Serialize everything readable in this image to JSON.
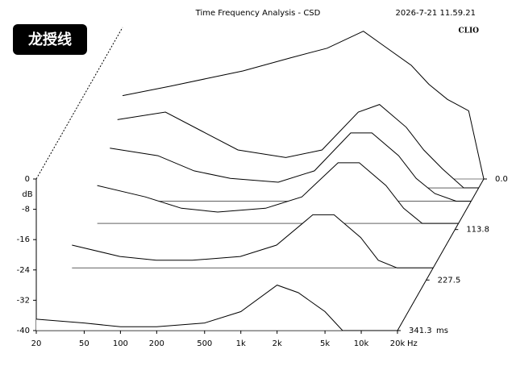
{
  "chart_data": {
    "type": "waterfall",
    "title": "Time Frequency Analysis - CSD",
    "timestamp": "2026-7-21 11.59.21",
    "brand": "CLIO",
    "badge": "龙授线",
    "ylabel": "dB",
    "xunit": "Hz",
    "tunit": "ms",
    "log_x": true,
    "xlim": [
      20,
      20000
    ],
    "xticks": [
      20,
      50,
      100,
      200,
      500,
      {
        "value": 1000,
        "label": "1k"
      },
      {
        "value": 2000,
        "label": "2k"
      },
      {
        "value": 5000,
        "label": "5k"
      },
      {
        "value": 10000,
        "label": "10k"
      },
      {
        "value": 20000,
        "label": "20k"
      }
    ],
    "ylim": [
      -40,
      0
    ],
    "yticks": [
      0,
      -8,
      -16,
      -24,
      -32,
      -40
    ],
    "tlim": [
      0,
      341.3
    ],
    "tticks": [
      {
        "value": 0,
        "label": "0.0"
      },
      113.8,
      227.5,
      341.3
    ],
    "color": "#000000",
    "x": [
      20,
      50,
      100,
      200,
      500,
      1000,
      2000,
      3000,
      5000,
      7000,
      10000,
      15000,
      20000
    ],
    "slices": [
      {
        "time": 0,
        "values": [
          -18,
          -15.5,
          -13.5,
          -11.5,
          -8,
          -5.5,
          -1,
          -5,
          -10,
          -15,
          -19,
          -22,
          -40
        ]
      },
      {
        "time": 20,
        "values": [
          -22,
          -20,
          -25,
          -30,
          -32,
          -30,
          -20,
          -18,
          -24,
          -30,
          -35,
          -40,
          -40
        ]
      },
      {
        "time": 50,
        "values": [
          -26,
          -28,
          -32,
          -34,
          -35,
          -32,
          -22,
          -22,
          -28,
          -34,
          -38,
          -40,
          -40
        ]
      },
      {
        "time": 100,
        "values": [
          -30,
          -33,
          -36,
          -37,
          -36,
          -33,
          -24,
          -24,
          -30,
          -36,
          -40,
          -40,
          -40
        ]
      },
      {
        "time": 200,
        "values": [
          -34,
          -37,
          -38,
          -38,
          -37,
          -34,
          -26,
          -26,
          -32,
          -38,
          -40,
          -40,
          -40
        ]
      },
      {
        "time": 341.3,
        "values": [
          -37,
          -38,
          -39,
          -39,
          -38,
          -35,
          -28,
          -30,
          -35,
          -40,
          -40,
          -40,
          -40
        ]
      }
    ]
  }
}
